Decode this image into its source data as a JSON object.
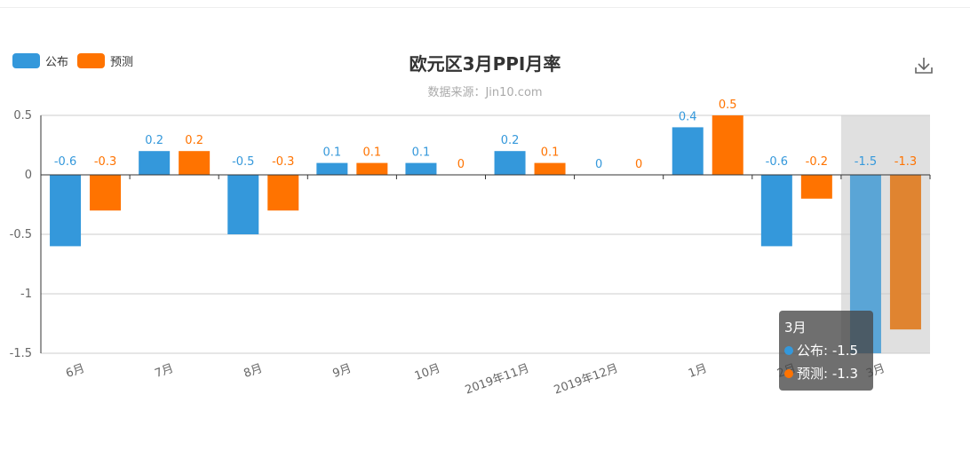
{
  "chart_data": {
    "type": "bar",
    "title": "欧元区3月PPI月率",
    "subtitle": "数据来源：Jin10.com",
    "categories": [
      "6月",
      "7月",
      "8月",
      "9月",
      "10月",
      "2019年11月",
      "2019年12月",
      "1月",
      "2月",
      "3月"
    ],
    "series": [
      {
        "name": "公布",
        "color": "#3498db",
        "values": [
          -0.6,
          0.2,
          -0.5,
          0.1,
          0.1,
          0.2,
          0,
          0.4,
          -0.6,
          -1.5
        ]
      },
      {
        "name": "预测",
        "color": "#ff7300",
        "values": [
          -0.3,
          0.2,
          -0.3,
          0.1,
          0,
          0.1,
          0,
          0.5,
          -0.2,
          -1.3
        ]
      }
    ],
    "y_ticks": [
      "0.5",
      "0",
      "-0.5",
      "-1",
      "-1.5"
    ],
    "ylim": [
      -1.5,
      0.5
    ],
    "highlight_index": 9,
    "legend_position": "top-left"
  },
  "tooltip": {
    "title": "3月",
    "rows": [
      {
        "label": "公布: -1.5",
        "color": "#3498db"
      },
      {
        "label": "预测: -1.3",
        "color": "#ff7300"
      }
    ]
  },
  "toolbar": {
    "icon": "download-icon"
  }
}
